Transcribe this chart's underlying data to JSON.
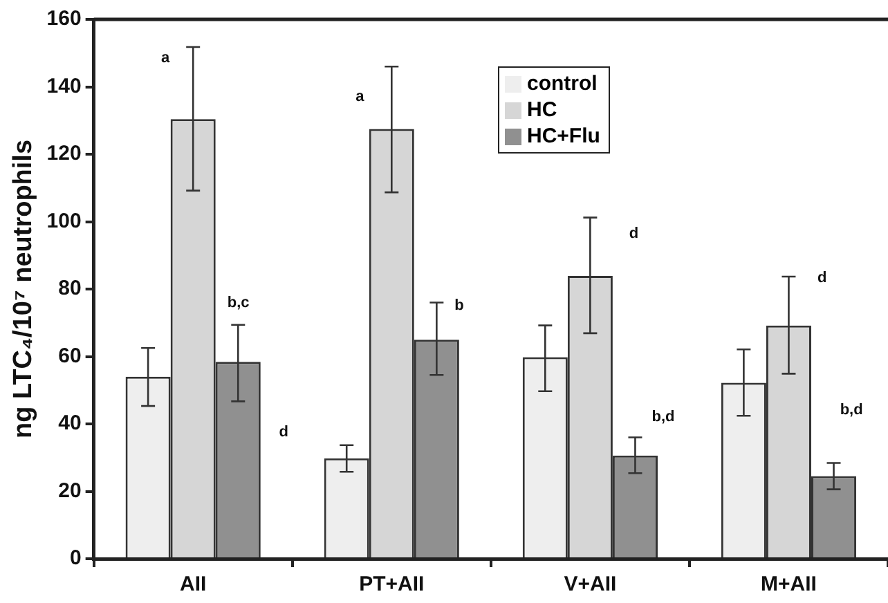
{
  "chart_data": {
    "type": "bar",
    "ylabel": "ng LTC₄/10⁷ neutrophils",
    "categories": [
      "AII",
      "PT+AII",
      "V+AII",
      "M+AII"
    ],
    "series": [
      {
        "name": "control",
        "color": "#eeeeee",
        "values": [
          54,
          29.8,
          59.8,
          52.2
        ],
        "errors": [
          [
            45.3,
            62.5
          ],
          [
            25.8,
            33.7
          ],
          [
            49.7,
            69.2
          ],
          [
            42.4,
            62.1
          ]
        ]
      },
      {
        "name": "HC",
        "color": "#d6d6d6",
        "values": [
          130.4,
          127.5,
          83.9,
          69.2
        ],
        "errors": [
          [
            109.2,
            151.8
          ],
          [
            108.7,
            146
          ],
          [
            66.9,
            101.2
          ],
          [
            54.9,
            83.7
          ]
        ]
      },
      {
        "name": "HC+Flu",
        "color": "#909090",
        "values": [
          58.4,
          65,
          30.6,
          24.5
        ],
        "errors": [
          [
            46.7,
            69.4
          ],
          [
            54.5,
            76
          ],
          [
            25.4,
            36
          ],
          [
            20.6,
            28.4
          ]
        ]
      }
    ],
    "ylim": [
      0,
      160
    ],
    "yticks": [
      0,
      20,
      40,
      60,
      80,
      100,
      120,
      140,
      160
    ],
    "grid": false,
    "legend": "top",
    "annotations": [
      "a",
      "b,c",
      "d",
      "a",
      "b",
      "d",
      "b,d",
      "d",
      "b,d"
    ]
  }
}
